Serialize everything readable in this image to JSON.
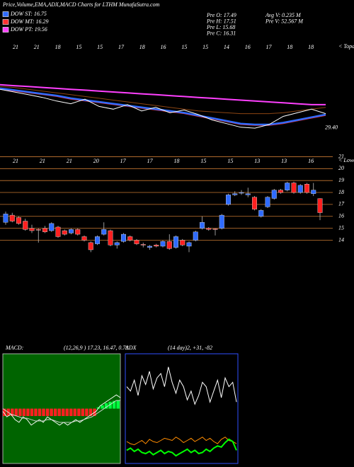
{
  "title": "Price,Volume,EMA,ADX,MACD Charts for LTHM MunafaSutra.com",
  "legend": [
    {
      "label": "DOW ST: 16.75",
      "color": "#2f6bff"
    },
    {
      "label": "DOW MT: 16.29",
      "color": "#ff3030"
    },
    {
      "label": "DOW PT: 19.56",
      "color": "#ff40ff"
    }
  ],
  "info": [
    "Pre O: 17.49",
    "Pre H: 17.51",
    "Pre L: 15.68",
    "Pre C: 16.31",
    "Avg V: 0.235 M",
    "Pre V: 52.567 M"
  ],
  "chart_data": [
    {
      "type": "line",
      "top_labels": [
        "21",
        "21",
        "18",
        "15",
        "15",
        "17",
        "18",
        "16",
        "15",
        "15",
        "14",
        "16",
        "17",
        "18",
        "18"
      ],
      "annotation": "< Topa",
      "ylim": [
        28.6,
        38
      ],
      "yticks": [
        {
          "value": 29.4,
          "label": "29.40"
        }
      ],
      "series": [
        {
          "color": "#8b4513",
          "values": [
            33.9,
            33.8,
            33.6,
            33.4,
            33.2,
            33.0,
            32.8,
            32.6,
            32.4,
            32.2,
            32.0,
            31.8,
            31.6,
            31.4,
            31.2,
            31.1,
            31.0,
            30.9,
            30.9,
            30.9,
            31.0,
            31.2,
            31.4,
            31.6
          ]
        },
        {
          "color": "#ff40ff",
          "values": [
            34.1,
            34.0,
            33.9,
            33.8,
            33.7,
            33.6,
            33.5,
            33.4,
            33.3,
            33.2,
            33.1,
            33.0,
            32.9,
            32.8,
            32.7,
            32.6,
            32.5,
            32.4,
            32.3,
            32.2,
            32.1,
            32.0,
            31.9,
            31.9
          ]
        },
        {
          "color": "#ff3030",
          "values": [
            33.6,
            33.4,
            33.2,
            33.0,
            32.8,
            32.5,
            32.3,
            32.1,
            31.9,
            31.7,
            31.5,
            31.3,
            31.1,
            30.9,
            30.6,
            30.3,
            30.0,
            29.7,
            29.6,
            29.6,
            29.8,
            30.1,
            30.4,
            30.7
          ]
        },
        {
          "color": "#2f6bff",
          "values": [
            33.7,
            33.5,
            33.3,
            33.1,
            32.9,
            32.6,
            32.4,
            32.2,
            32.0,
            31.8,
            31.6,
            31.4,
            31.2,
            31.0,
            30.7,
            30.4,
            30.1,
            29.8,
            29.7,
            29.7,
            29.9,
            30.2,
            30.5,
            30.8
          ]
        },
        {
          "color": "#ffffff",
          "values": [
            33.6,
            33.3,
            33.0,
            32.7,
            32.3,
            32.0,
            32.5,
            31.7,
            31.4,
            31.9,
            31.2,
            31.6,
            31.0,
            31.3,
            30.8,
            30.2,
            29.8,
            29.4,
            29.3,
            29.7,
            30.6,
            31.0,
            31.4,
            30.9
          ]
        }
      ]
    },
    {
      "type": "candlestick",
      "top_labels": [
        "21",
        "21",
        "21",
        "20",
        "17",
        "17",
        "18",
        "15",
        "15",
        "13",
        "13",
        "16"
      ],
      "annotation": "< Lower",
      "ylim": [
        13.2,
        21.5
      ],
      "yticks": [
        21,
        20,
        19,
        18,
        17,
        16,
        15,
        14
      ],
      "grid": true,
      "grid_color": "#c87832",
      "up_color": "#2f6bff",
      "down_color": "#ff2020",
      "open": [
        15.5,
        16.1,
        15.9,
        15.6,
        15.0,
        14.9,
        15.0,
        14.8,
        15.1,
        14.8,
        14.6,
        14.9,
        14.3,
        13.8,
        13.7,
        14.5,
        14.8,
        13.6,
        13.9,
        14.3,
        14.0,
        13.65,
        13.4,
        13.6,
        13.5,
        13.9,
        13.4,
        14.0,
        13.5,
        14.0,
        15.0,
        15.0,
        14.95,
        15.0,
        17.0,
        17.8,
        17.95,
        17.8,
        17.6,
        16.0,
        16.8,
        17.5,
        18.2,
        18.2,
        18.8,
        18.0,
        18.7,
        17.9,
        17.49
      ],
      "high": [
        16.4,
        16.3,
        16.0,
        15.8,
        15.3,
        15.0,
        15.2,
        15.5,
        15.2,
        14.9,
        15.0,
        15.0,
        14.4,
        13.9,
        14.4,
        15.5,
        14.9,
        13.9,
        14.6,
        14.4,
        14.1,
        13.8,
        13.6,
        13.7,
        14.0,
        14.5,
        14.4,
        14.1,
        13.9,
        14.8,
        16.0,
        15.1,
        15.0,
        16.2,
        17.9,
        18.1,
        18.2,
        18.4,
        17.7,
        16.6,
        17.7,
        18.3,
        18.3,
        18.9,
        18.9,
        18.7,
        18.8,
        18.8,
        17.51
      ],
      "low": [
        15.3,
        15.5,
        15.3,
        14.8,
        14.6,
        13.8,
        14.6,
        14.7,
        14.2,
        14.4,
        14.5,
        14.4,
        13.9,
        13.0,
        13.6,
        14.4,
        13.5,
        13.3,
        13.8,
        13.9,
        13.6,
        13.4,
        13.2,
        13.4,
        13.4,
        13.2,
        13.3,
        13.5,
        13.0,
        13.9,
        14.9,
        14.8,
        14.4,
        14.9,
        16.9,
        17.7,
        17.8,
        17.6,
        16.5,
        15.9,
        16.7,
        17.4,
        17.9,
        18.1,
        17.9,
        17.9,
        17.9,
        17.7,
        15.68
      ],
      "close": [
        16.2,
        15.6,
        15.4,
        14.9,
        14.8,
        14.85,
        14.7,
        15.4,
        14.3,
        14.5,
        14.9,
        14.5,
        14.0,
        13.2,
        14.3,
        14.9,
        13.6,
        13.8,
        14.5,
        14.0,
        13.7,
        13.6,
        13.5,
        13.5,
        13.9,
        13.3,
        14.3,
        13.6,
        13.8,
        14.7,
        15.5,
        14.9,
        14.9,
        16.1,
        17.8,
        17.9,
        18.0,
        17.9,
        16.6,
        16.5,
        17.6,
        18.2,
        18.0,
        18.8,
        18.0,
        18.6,
        18.0,
        18.2,
        16.31
      ]
    },
    {
      "type": "macd",
      "label": "MACD:",
      "params": "(12,26,9 ) 17.23, 16.47, 0.78",
      "bg": "#006400",
      "ylim": [
        -2,
        2
      ],
      "histogram": [
        -0.27,
        -0.27,
        -0.27,
        -0.27,
        -0.27,
        -0.27,
        -0.27,
        -0.27,
        -0.27,
        -0.27,
        -0.27,
        -0.27,
        -0.27,
        -0.27,
        -0.27,
        -0.27,
        -0.27,
        -0.27,
        -0.27,
        -0.27,
        -0.27,
        -0.27,
        -0.27,
        -0.27,
        0.05,
        0.12,
        0.2,
        0.25,
        0.28,
        0.3
      ],
      "series": [
        {
          "color": "#ffffff",
          "values": [
            -0.1,
            -0.3,
            -0.2,
            -0.4,
            -0.5,
            -0.3,
            -0.4,
            -0.6,
            -0.5,
            -0.4,
            -0.5,
            -0.3,
            -0.4,
            -0.5,
            -0.6,
            -0.5,
            -0.6,
            -0.5,
            -0.4,
            -0.5,
            -0.4,
            -0.3,
            -0.2,
            -0.1,
            0.1,
            0.2,
            0.3,
            0.4,
            0.5,
            0.4
          ]
        },
        {
          "color": "#dddddd",
          "values": [
            0.0,
            -0.1,
            -0.2,
            -0.25,
            -0.3,
            -0.35,
            -0.35,
            -0.4,
            -0.45,
            -0.45,
            -0.45,
            -0.4,
            -0.4,
            -0.45,
            -0.5,
            -0.5,
            -0.5,
            -0.5,
            -0.45,
            -0.45,
            -0.4,
            -0.35,
            -0.3,
            -0.2,
            -0.1,
            0.0,
            0.1,
            0.2,
            0.3,
            0.3
          ]
        }
      ]
    },
    {
      "type": "adx",
      "label": "ADX",
      "params": "(14  day)2, +31, -82",
      "border": "#3050ff",
      "ylim": [
        0,
        100
      ],
      "series": [
        {
          "color": "#ffffff",
          "values": [
            70,
            66,
            76,
            62,
            80,
            72,
            84,
            68,
            78,
            82,
            70,
            88,
            74,
            64,
            76,
            70,
            58,
            66,
            54,
            62,
            74,
            70,
            56,
            66,
            76,
            60,
            78,
            70,
            74,
            56
          ]
        },
        {
          "color": "#ff8c00",
          "values": [
            20,
            18,
            17,
            19,
            21,
            18,
            22,
            20,
            19,
            21,
            23,
            22,
            21,
            24,
            22,
            19,
            21,
            23,
            20,
            22,
            24,
            21,
            23,
            20,
            18,
            22,
            24,
            21,
            20,
            18
          ]
        },
        {
          "color": "#00ff00",
          "values": [
            12,
            14,
            11,
            13,
            10,
            9,
            11,
            8,
            10,
            12,
            9,
            11,
            10,
            7,
            9,
            11,
            13,
            10,
            12,
            9,
            10,
            13,
            11,
            14,
            16,
            15,
            19,
            22,
            20,
            12
          ]
        }
      ]
    }
  ]
}
